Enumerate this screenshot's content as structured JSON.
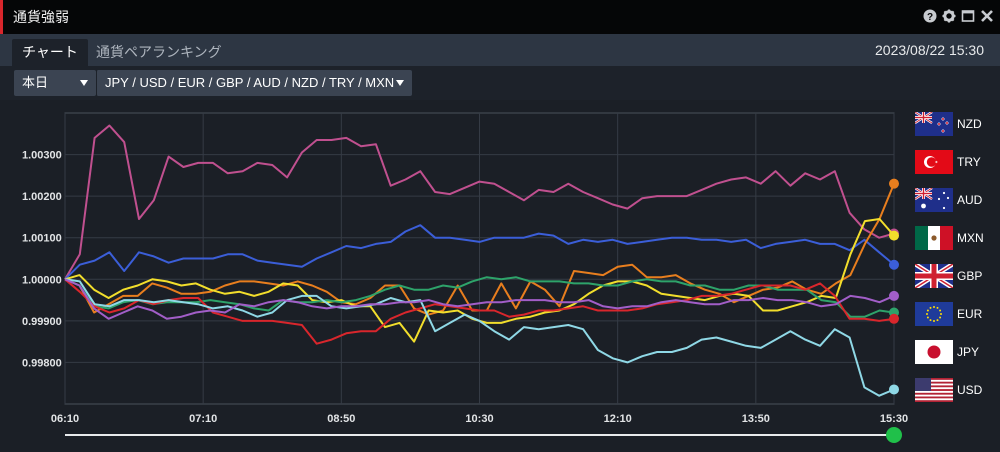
{
  "window": {
    "title": "通貨強弱"
  },
  "tabs": [
    {
      "label": "チャート",
      "active": true
    },
    {
      "label": "通貨ペアランキング",
      "active": false
    }
  ],
  "datetime": "2023/08/22 15:30",
  "controls": {
    "period": "本日",
    "currencies": "JPY / USD / EUR / GBP / AUD / NZD / TRY / MXN"
  },
  "legend": [
    {
      "code": "NZD",
      "flag": "nz"
    },
    {
      "code": "TRY",
      "flag": "tr"
    },
    {
      "code": "AUD",
      "flag": "au"
    },
    {
      "code": "MXN",
      "flag": "mx"
    },
    {
      "code": "GBP",
      "flag": "gb"
    },
    {
      "code": "EUR",
      "flag": "eu"
    },
    {
      "code": "JPY",
      "flag": "jp"
    },
    {
      "code": "USD",
      "flag": "us"
    }
  ],
  "chart_data": {
    "type": "line",
    "y_ticks": [
      "1.00300",
      "1.00200",
      "1.00100",
      "1.00000",
      "0.99900",
      "0.99800"
    ],
    "x_ticks": [
      "06:10",
      "07:10",
      "08:50",
      "10:30",
      "12:10",
      "13:50",
      "15:30"
    ],
    "ylim": [
      0.997,
      1.004
    ],
    "grid": true,
    "time_slider": {
      "position": 1.0,
      "handle_color": "#20c04a"
    },
    "series": [
      {
        "name": "TRY",
        "color": "#c0508f",
        "end_marker": true,
        "y": [
          1.0,
          1.0006,
          1.0034,
          1.0037,
          1.0033,
          1.00145,
          1.0019,
          1.00295,
          1.0027,
          1.0028,
          1.0028,
          1.00255,
          1.0026,
          1.0028,
          1.00275,
          1.00245,
          1.00305,
          1.00335,
          1.00335,
          1.0034,
          1.0032,
          1.00325,
          1.00225,
          1.0024,
          1.0026,
          1.0021,
          1.00205,
          1.0022,
          1.00235,
          1.0023,
          1.0021,
          1.0019,
          1.00215,
          1.0021,
          1.0023,
          1.0021,
          1.00195,
          1.0018,
          1.0017,
          1.00195,
          1.002,
          1.002,
          1.002,
          1.00215,
          1.0023,
          1.0024,
          1.00245,
          1.0023,
          1.0026,
          1.00225,
          1.00255,
          1.0024,
          1.0026,
          1.0016,
          1.0012,
          1.001,
          1.0011
        ]
      },
      {
        "name": "NZD",
        "color": "#3b5ed8",
        "end_marker": true,
        "y": [
          1.0,
          1.00035,
          1.00045,
          1.00065,
          1.0002,
          1.00065,
          1.00055,
          1.0004,
          1.0005,
          1.0005,
          1.0005,
          1.0006,
          1.0006,
          1.00045,
          1.0004,
          1.00035,
          1.0003,
          1.0005,
          1.00065,
          1.0008,
          1.00075,
          1.00085,
          1.0009,
          1.00115,
          1.0013,
          1.001,
          1.001,
          1.00095,
          1.0009,
          1.001,
          1.001,
          1.001,
          1.0011,
          1.00105,
          1.00085,
          1.00095,
          1.0009,
          1.00095,
          1.00085,
          1.0009,
          1.00095,
          1.001,
          1.001,
          1.00095,
          1.00095,
          1.0009,
          1.00095,
          1.00075,
          1.00085,
          1.0009,
          1.00095,
          1.00085,
          1.00085,
          1.0007,
          1.00095,
          1.00065,
          1.00035
        ]
      },
      {
        "name": "AUD",
        "color": "#e87e1e",
        "end_marker": true,
        "y": [
          1.0,
          0.99985,
          0.9992,
          0.9994,
          0.9996,
          0.9996,
          0.9999,
          0.9998,
          0.99965,
          0.99965,
          0.9997,
          0.99985,
          0.99995,
          0.99995,
          0.9999,
          0.99985,
          0.99995,
          0.99985,
          0.9997,
          0.99945,
          0.9994,
          0.99955,
          0.99985,
          0.99985,
          0.9993,
          0.99915,
          0.99925,
          0.99985,
          0.99925,
          0.99925,
          0.9999,
          0.9993,
          0.99995,
          0.99975,
          0.99935,
          1.0002,
          1.00015,
          1.0001,
          1.0003,
          1.00035,
          1.00005,
          1.00005,
          1.0001,
          0.9999,
          0.99975,
          0.99965,
          0.99945,
          0.9996,
          0.99975,
          0.9998,
          0.99995,
          0.99975,
          0.99965,
          0.9999,
          1.0001,
          1.00085,
          1.00145,
          1.0023
        ]
      },
      {
        "name": "MXN",
        "color": "#f2de2c",
        "end_marker": true,
        "y": [
          1.0,
          1.0001,
          0.99975,
          0.99955,
          0.99975,
          0.99985,
          1.0,
          0.99995,
          0.99985,
          0.9999,
          0.99975,
          0.99965,
          0.9997,
          0.9996,
          0.9997,
          0.9999,
          0.99985,
          0.9995,
          0.99945,
          0.9995,
          0.99935,
          0.99935,
          0.99885,
          0.99895,
          0.9985,
          0.99925,
          0.9992,
          0.99925,
          0.99905,
          0.99895,
          0.99895,
          0.99905,
          0.9991,
          0.9992,
          0.99925,
          0.9994,
          0.99965,
          0.99985,
          0.99995,
          0.99995,
          0.99985,
          0.99965,
          0.9996,
          0.99955,
          0.9995,
          0.9996,
          0.99965,
          0.9996,
          0.99925,
          0.99925,
          0.99935,
          0.99945,
          0.9996,
          0.99955,
          1.0006,
          1.0014,
          1.00145,
          1.00105
        ]
      },
      {
        "name": "GBP",
        "color": "#2ea36a",
        "end_marker": true,
        "y": [
          1.0,
          0.99985,
          0.99935,
          0.9993,
          0.99945,
          0.9995,
          0.9994,
          0.99945,
          0.99945,
          0.99945,
          0.9995,
          0.99945,
          0.9994,
          0.9993,
          0.99925,
          0.9995,
          0.99945,
          0.99945,
          0.9995,
          0.99945,
          0.9995,
          0.9996,
          0.99975,
          0.99985,
          0.99975,
          0.99975,
          0.99985,
          0.9998,
          0.99995,
          1.00005,
          1.0,
          1.00005,
          0.99995,
          0.99995,
          0.99995,
          0.9999,
          0.9999,
          0.99985,
          0.99985,
          0.99995,
          1.0,
          0.99995,
          0.99995,
          0.99985,
          0.99985,
          0.99975,
          0.99975,
          0.99985,
          0.99985,
          0.99975,
          0.99975,
          0.99975,
          0.9995,
          0.99945,
          0.9991,
          0.9991,
          0.99925,
          0.9992
        ]
      },
      {
        "name": "EUR",
        "color": "#d9262c",
        "end_marker": true,
        "y": [
          1.0,
          0.9997,
          0.99935,
          0.9992,
          0.9993,
          0.9995,
          0.9994,
          0.9995,
          0.99955,
          0.99955,
          0.9992,
          0.9991,
          0.999,
          0.999,
          0.999,
          0.99895,
          0.9989,
          0.99845,
          0.99855,
          0.9987,
          0.99875,
          0.99875,
          0.99905,
          0.9992,
          0.9993,
          0.9994,
          0.99935,
          0.9993,
          0.99925,
          0.99925,
          0.9991,
          0.99915,
          0.99925,
          0.99925,
          0.9993,
          0.99935,
          0.99925,
          0.99925,
          0.99925,
          0.9993,
          0.9994,
          0.99945,
          0.9995,
          0.9996,
          0.9996,
          0.99965,
          0.99975,
          0.99985,
          0.99985,
          0.99985,
          0.99975,
          0.9999,
          0.9996,
          0.99905,
          0.99905,
          0.999,
          0.99905
        ]
      },
      {
        "name": "JPY",
        "color": "#8fd8e6",
        "end_marker": true,
        "y": [
          1.0,
          0.99995,
          0.9994,
          0.99935,
          0.9995,
          0.9995,
          0.99945,
          0.9995,
          0.99945,
          0.9994,
          0.9993,
          0.99935,
          0.99925,
          0.9991,
          0.9992,
          0.9995,
          0.9996,
          0.9996,
          0.99935,
          0.9993,
          0.99935,
          0.9994,
          0.99955,
          0.99945,
          0.9995,
          0.99875,
          0.99895,
          0.99915,
          0.999,
          0.99875,
          0.99855,
          0.99885,
          0.9988,
          0.99885,
          0.9989,
          0.9988,
          0.9983,
          0.9981,
          0.998,
          0.99815,
          0.99825,
          0.99825,
          0.99835,
          0.99855,
          0.9986,
          0.9985,
          0.9984,
          0.99835,
          0.99855,
          0.99875,
          0.99855,
          0.9984,
          0.9988,
          0.9986,
          0.9974,
          0.9972,
          0.99735
        ]
      },
      {
        "name": "USD",
        "color": "#a25ec8",
        "end_marker": true,
        "y": [
          1.0,
          0.99985,
          0.9993,
          0.99905,
          0.9992,
          0.99935,
          0.99925,
          0.99905,
          0.9991,
          0.9992,
          0.99925,
          0.9992,
          0.9994,
          0.99935,
          0.99945,
          0.9995,
          0.99945,
          0.99935,
          0.9993,
          0.99935,
          0.99935,
          0.9994,
          0.9994,
          0.99945,
          0.99945,
          0.9995,
          0.9994,
          0.99935,
          0.9994,
          0.99945,
          0.99945,
          0.9995,
          0.9995,
          0.9995,
          0.99945,
          0.99945,
          0.9995,
          0.99935,
          0.9993,
          0.99935,
          0.99935,
          0.99945,
          0.9995,
          0.99945,
          0.9994,
          0.9994,
          0.9995,
          0.9995,
          0.99955,
          0.9995,
          0.9995,
          0.99945,
          0.99935,
          0.9994,
          0.9996,
          0.99955,
          0.99945,
          0.9996
        ]
      }
    ]
  }
}
